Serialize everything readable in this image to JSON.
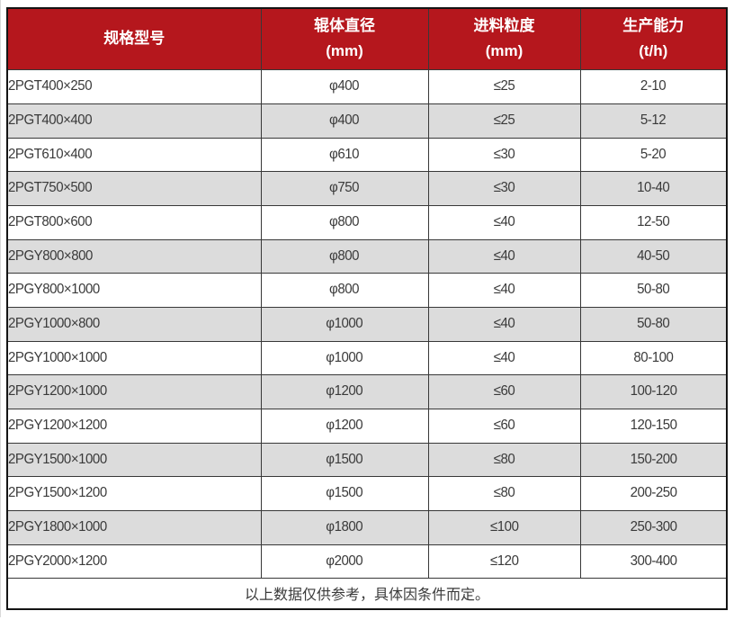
{
  "table": {
    "columns": [
      {
        "title": "规格型号",
        "unit": ""
      },
      {
        "title": "辊体直径",
        "unit": "(mm)"
      },
      {
        "title": "进料粒度",
        "unit": "(mm)"
      },
      {
        "title": "生产能力",
        "unit": "(t/h)"
      }
    ],
    "rows": [
      [
        "2PGT400×250",
        "φ400",
        "≤25",
        "2-10"
      ],
      [
        "2PGT400×400",
        "φ400",
        "≤25",
        "5-12"
      ],
      [
        "2PGT610×400",
        "φ610",
        "≤30",
        "5-20"
      ],
      [
        "2PGT750×500",
        "φ750",
        "≤30",
        "10-40"
      ],
      [
        "2PGT800×600",
        "φ800",
        "≤40",
        "12-50"
      ],
      [
        "2PGY800×800",
        "φ800",
        "≤40",
        "40-50"
      ],
      [
        "2PGY800×1000",
        "φ800",
        "≤40",
        "50-80"
      ],
      [
        "2PGY1000×800",
        "φ1000",
        "≤40",
        "50-80"
      ],
      [
        "2PGY1000×1000",
        "φ1000",
        "≤40",
        "80-100"
      ],
      [
        "2PGY1200×1000",
        "φ1200",
        "≤60",
        "100-120"
      ],
      [
        "2PGY1200×1200",
        "φ1200",
        "≤60",
        "120-150"
      ],
      [
        "2PGY1500×1000",
        "φ1500",
        "≤80",
        "150-200"
      ],
      [
        "2PGY1500×1200",
        "φ1500",
        "≤80",
        "200-250"
      ],
      [
        "2PGY1800×1000",
        "φ1800",
        "≤100",
        "250-300"
      ],
      [
        "2PGY2000×1200",
        "φ2000",
        "≤120",
        "300-400"
      ]
    ],
    "footnote": "以上数据仅供参考，具体因条件而定。"
  },
  "colors": {
    "header_bg": "#b5171d",
    "header_text": "#ffffff",
    "row_bg": "#ffffff",
    "row_alt_bg": "#dcdcdc",
    "border": "#383838",
    "outer_border": "#141414",
    "text": "#3a3a3a"
  }
}
